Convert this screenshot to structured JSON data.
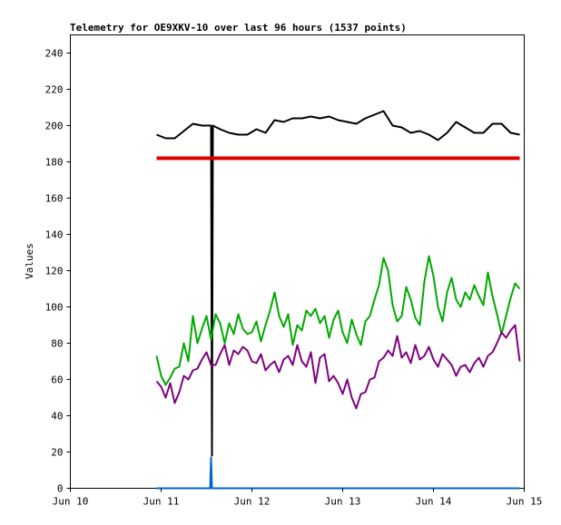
{
  "chart_data": {
    "type": "line",
    "title": "Telemetry for OE9XKV-10 over last 96 hours (1537 points)",
    "xlabel": "",
    "ylabel": "Values",
    "ylim": [
      0,
      250
    ],
    "yticks": [
      0,
      20,
      40,
      60,
      80,
      100,
      120,
      140,
      160,
      180,
      200,
      220,
      240
    ],
    "xlim": [
      0,
      5
    ],
    "xticks": [
      {
        "value": 0,
        "label": "Jun 10"
      },
      {
        "value": 1,
        "label": "Jun 11"
      },
      {
        "value": 2,
        "label": "Jun 12"
      },
      {
        "value": 3,
        "label": "Jun 13"
      },
      {
        "value": 4,
        "label": "Jun 14"
      },
      {
        "value": 5,
        "label": "Jun 15"
      }
    ],
    "grid": false,
    "legend": "none",
    "series": [
      {
        "name": "black",
        "color": "#000000",
        "points": [
          [
            0.95,
            195
          ],
          [
            1.05,
            193
          ],
          [
            1.15,
            193
          ],
          [
            1.25,
            197
          ],
          [
            1.35,
            201
          ],
          [
            1.45,
            200
          ],
          [
            1.55,
            200
          ],
          [
            1.56,
            18
          ],
          [
            1.57,
            200
          ],
          [
            1.65,
            198
          ],
          [
            1.75,
            196
          ],
          [
            1.85,
            195
          ],
          [
            1.95,
            195
          ],
          [
            2.05,
            198
          ],
          [
            2.15,
            196
          ],
          [
            2.25,
            203
          ],
          [
            2.35,
            202
          ],
          [
            2.45,
            204
          ],
          [
            2.55,
            204
          ],
          [
            2.65,
            205
          ],
          [
            2.75,
            204
          ],
          [
            2.85,
            205
          ],
          [
            2.95,
            203
          ],
          [
            3.05,
            202
          ],
          [
            3.15,
            201
          ],
          [
            3.25,
            204
          ],
          [
            3.35,
            206
          ],
          [
            3.45,
            208
          ],
          [
            3.55,
            200
          ],
          [
            3.65,
            199
          ],
          [
            3.75,
            196
          ],
          [
            3.85,
            197
          ],
          [
            3.95,
            195
          ],
          [
            4.05,
            192
          ],
          [
            4.15,
            196
          ],
          [
            4.25,
            202
          ],
          [
            4.35,
            199
          ],
          [
            4.45,
            196
          ],
          [
            4.55,
            196
          ],
          [
            4.65,
            201
          ],
          [
            4.75,
            201
          ],
          [
            4.85,
            196
          ],
          [
            4.95,
            195
          ]
        ]
      },
      {
        "name": "red",
        "color": "#dd0000",
        "points": [
          [
            0.95,
            182
          ],
          [
            1.5,
            182
          ],
          [
            2.0,
            182
          ],
          [
            2.5,
            182
          ],
          [
            3.0,
            182
          ],
          [
            3.5,
            182
          ],
          [
            4.0,
            182
          ],
          [
            4.5,
            182
          ],
          [
            4.95,
            182
          ]
        ]
      },
      {
        "name": "green",
        "color": "#00aa00",
        "points": [
          [
            0.95,
            73
          ],
          [
            1.0,
            62
          ],
          [
            1.05,
            57
          ],
          [
            1.1,
            61
          ],
          [
            1.15,
            66
          ],
          [
            1.2,
            67
          ],
          [
            1.25,
            80
          ],
          [
            1.3,
            70
          ],
          [
            1.35,
            95
          ],
          [
            1.4,
            80
          ],
          [
            1.45,
            88
          ],
          [
            1.5,
            95
          ],
          [
            1.55,
            82
          ],
          [
            1.6,
            96
          ],
          [
            1.65,
            91
          ],
          [
            1.7,
            80
          ],
          [
            1.75,
            91
          ],
          [
            1.8,
            85
          ],
          [
            1.85,
            96
          ],
          [
            1.9,
            88
          ],
          [
            1.95,
            85
          ],
          [
            2.0,
            86
          ],
          [
            2.05,
            92
          ],
          [
            2.1,
            81
          ],
          [
            2.15,
            90
          ],
          [
            2.2,
            98
          ],
          [
            2.25,
            108
          ],
          [
            2.3,
            95
          ],
          [
            2.35,
            89
          ],
          [
            2.4,
            96
          ],
          [
            2.45,
            79
          ],
          [
            2.5,
            90
          ],
          [
            2.55,
            87
          ],
          [
            2.6,
            98
          ],
          [
            2.65,
            95
          ],
          [
            2.7,
            99
          ],
          [
            2.75,
            91
          ],
          [
            2.8,
            95
          ],
          [
            2.85,
            83
          ],
          [
            2.9,
            93
          ],
          [
            2.95,
            98
          ],
          [
            3.0,
            86
          ],
          [
            3.05,
            80
          ],
          [
            3.1,
            93
          ],
          [
            3.15,
            85
          ],
          [
            3.2,
            79
          ],
          [
            3.25,
            92
          ],
          [
            3.3,
            95
          ],
          [
            3.35,
            104
          ],
          [
            3.4,
            112
          ],
          [
            3.45,
            127
          ],
          [
            3.5,
            120
          ],
          [
            3.55,
            101
          ],
          [
            3.6,
            92
          ],
          [
            3.65,
            95
          ],
          [
            3.7,
            111
          ],
          [
            3.75,
            104
          ],
          [
            3.8,
            94
          ],
          [
            3.85,
            90
          ],
          [
            3.9,
            114
          ],
          [
            3.95,
            128
          ],
          [
            4.0,
            117
          ],
          [
            4.05,
            100
          ],
          [
            4.1,
            92
          ],
          [
            4.15,
            108
          ],
          [
            4.2,
            116
          ],
          [
            4.25,
            104
          ],
          [
            4.3,
            100
          ],
          [
            4.35,
            108
          ],
          [
            4.4,
            104
          ],
          [
            4.45,
            112
          ],
          [
            4.5,
            106
          ],
          [
            4.55,
            101
          ],
          [
            4.6,
            119
          ],
          [
            4.65,
            106
          ],
          [
            4.7,
            96
          ],
          [
            4.75,
            85
          ],
          [
            4.8,
            95
          ],
          [
            4.85,
            105
          ],
          [
            4.9,
            113
          ],
          [
            4.95,
            110
          ]
        ]
      },
      {
        "name": "purple",
        "color": "#800080",
        "points": [
          [
            0.95,
            59
          ],
          [
            1.0,
            56
          ],
          [
            1.05,
            50
          ],
          [
            1.1,
            58
          ],
          [
            1.15,
            47
          ],
          [
            1.2,
            53
          ],
          [
            1.25,
            62
          ],
          [
            1.3,
            60
          ],
          [
            1.35,
            65
          ],
          [
            1.4,
            66
          ],
          [
            1.45,
            71
          ],
          [
            1.5,
            75
          ],
          [
            1.55,
            68
          ],
          [
            1.6,
            68
          ],
          [
            1.65,
            74
          ],
          [
            1.7,
            79
          ],
          [
            1.75,
            68
          ],
          [
            1.8,
            76
          ],
          [
            1.85,
            74
          ],
          [
            1.9,
            78
          ],
          [
            1.95,
            76
          ],
          [
            2.0,
            70
          ],
          [
            2.05,
            69
          ],
          [
            2.1,
            74
          ],
          [
            2.15,
            65
          ],
          [
            2.2,
            68
          ],
          [
            2.25,
            70
          ],
          [
            2.3,
            64
          ],
          [
            2.35,
            71
          ],
          [
            2.4,
            73
          ],
          [
            2.45,
            68
          ],
          [
            2.5,
            79
          ],
          [
            2.55,
            70
          ],
          [
            2.6,
            67
          ],
          [
            2.65,
            75
          ],
          [
            2.7,
            58
          ],
          [
            2.75,
            72
          ],
          [
            2.8,
            74
          ],
          [
            2.85,
            59
          ],
          [
            2.9,
            62
          ],
          [
            2.95,
            58
          ],
          [
            3.0,
            52
          ],
          [
            3.05,
            60
          ],
          [
            3.1,
            50
          ],
          [
            3.15,
            44
          ],
          [
            3.2,
            52
          ],
          [
            3.25,
            53
          ],
          [
            3.3,
            60
          ],
          [
            3.35,
            61
          ],
          [
            3.4,
            70
          ],
          [
            3.45,
            72
          ],
          [
            3.5,
            76
          ],
          [
            3.55,
            73
          ],
          [
            3.6,
            84
          ],
          [
            3.65,
            72
          ],
          [
            3.7,
            75
          ],
          [
            3.75,
            69
          ],
          [
            3.8,
            79
          ],
          [
            3.85,
            71
          ],
          [
            3.9,
            73
          ],
          [
            3.95,
            78
          ],
          [
            4.0,
            71
          ],
          [
            4.05,
            67
          ],
          [
            4.1,
            74
          ],
          [
            4.15,
            71
          ],
          [
            4.2,
            68
          ],
          [
            4.25,
            62
          ],
          [
            4.3,
            67
          ],
          [
            4.35,
            68
          ],
          [
            4.4,
            64
          ],
          [
            4.45,
            69
          ],
          [
            4.5,
            72
          ],
          [
            4.55,
            67
          ],
          [
            4.6,
            73
          ],
          [
            4.65,
            75
          ],
          [
            4.7,
            80
          ],
          [
            4.75,
            86
          ],
          [
            4.8,
            83
          ],
          [
            4.85,
            87
          ],
          [
            4.9,
            90
          ],
          [
            4.95,
            70
          ]
        ]
      },
      {
        "name": "blue",
        "color": "#0066cc",
        "points": [
          [
            0.95,
            0
          ],
          [
            1.54,
            0
          ],
          [
            1.55,
            17
          ],
          [
            1.56,
            0
          ],
          [
            4.95,
            0
          ]
        ]
      }
    ]
  }
}
